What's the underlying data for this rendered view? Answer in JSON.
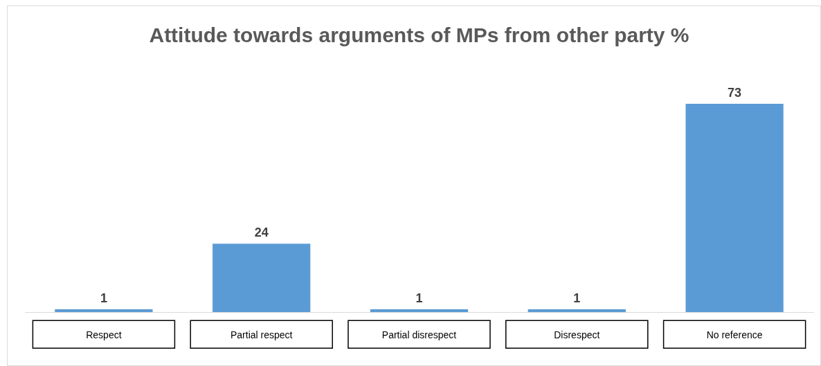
{
  "chart_data": {
    "type": "bar",
    "title": "Attitude towards arguments of MPs from other party %",
    "categories": [
      "Respect",
      "Partial respect",
      "Partial disrespect",
      "Disrespect",
      "No reference"
    ],
    "values": [
      1,
      24,
      1,
      1,
      73
    ],
    "color": "#5b9bd5",
    "data_labels": true,
    "grid": false,
    "legend": false,
    "tick_labels": "x"
  }
}
